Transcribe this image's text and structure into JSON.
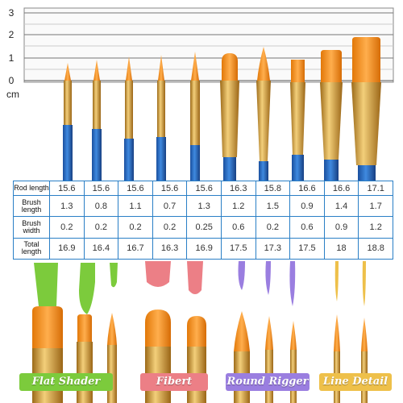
{
  "ruler": {
    "marks": [
      "3",
      "2",
      "1",
      "0"
    ],
    "unit": "cm"
  },
  "table": {
    "rows": [
      {
        "label": "Rod length",
        "values": [
          "15.6",
          "15.6",
          "15.6",
          "15.6",
          "15.6",
          "16.3",
          "15.8",
          "16.6",
          "16.6",
          "17.1"
        ]
      },
      {
        "label": "Brush length",
        "values": [
          "1.3",
          "0.8",
          "1.1",
          "0.7",
          "1.3",
          "1.2",
          "1.5",
          "0.9",
          "1.4",
          "1.7"
        ]
      },
      {
        "label": "Brush width",
        "values": [
          "0.2",
          "0.2",
          "0.2",
          "0.2",
          "0.25",
          "0.6",
          "0.2",
          "0.6",
          "0.9",
          "1.2"
        ]
      },
      {
        "label": "Total length",
        "values": [
          "16.9",
          "16.4",
          "16.7",
          "16.3",
          "16.9",
          "17.5",
          "17.3",
          "17.5",
          "18",
          "18.8"
        ]
      }
    ]
  },
  "labels": {
    "flat_shader": "Flat Shader",
    "fibert": "Fibert",
    "round_rigger": "Round Rigger",
    "line_detail": "Line Detail"
  },
  "colors": {
    "table_border": "#2a7fc6",
    "handle_blue": "#1f5fb8",
    "ferrule_gold": "#d9a23a",
    "bristle_orange": "#f08a1c",
    "flat_shader_green": "#7ccb3c",
    "fibert_pink": "#ec7f86",
    "round_rigger_purple": "#9a7ee0",
    "line_detail_yellow": "#eec04a"
  }
}
